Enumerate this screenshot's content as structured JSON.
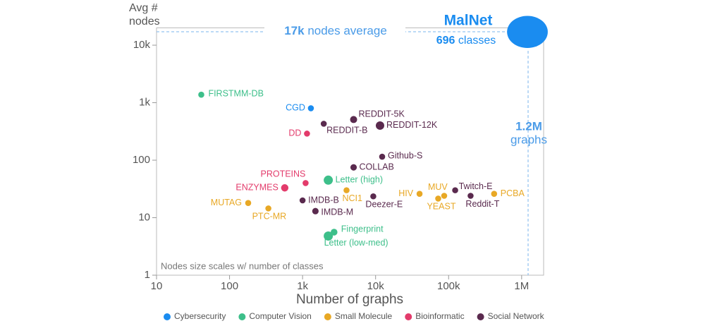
{
  "chart_data": {
    "type": "scatter",
    "ylabel": [
      "Avg #",
      "nodes"
    ],
    "xlabel": "Number of graphs",
    "xlog": true,
    "ylog": true,
    "xlim": [
      10,
      2000000
    ],
    "ylim": [
      1,
      20000
    ],
    "xticks": [
      10,
      100,
      {
        "value": 1000,
        "label": "1k"
      },
      {
        "value": 10000,
        "label": "10k"
      },
      {
        "value": 100000,
        "label": "100k"
      },
      {
        "value": 1000000,
        "label": "1M"
      }
    ],
    "yticks": [
      1,
      10,
      100,
      {
        "value": 1000,
        "label": "1k"
      },
      {
        "value": 10000,
        "label": "10k"
      }
    ],
    "note": "Nodes size scales w/ number of classes",
    "highlight": {
      "name": "MalNet",
      "classes_value": "696",
      "classes_unit": "classes",
      "avg_value": "17k",
      "avg_unit": "nodes average",
      "graphs_value": "1.2M",
      "graphs_unit": "graphs"
    },
    "series": [
      {
        "name": "Cybersecurity",
        "color": "#1a8cf0",
        "labels": [
          "CGD",
          "MalNet"
        ],
        "x": [
          1300,
          1200000
        ],
        "values": [
          800,
          17000
        ],
        "sizes": [
          2,
          696
        ]
      },
      {
        "name": "Computer Vision",
        "color": "#3dbf8a",
        "labels": [
          "FIRSTMM-DB",
          "Letter (high)",
          "Fingerprint",
          "Letter (low-med)"
        ],
        "x": [
          41,
          2250,
          2700,
          2250
        ],
        "values": [
          1377,
          45,
          5.6,
          4.8
        ],
        "sizes": [
          2,
          15,
          4,
          15
        ]
      },
      {
        "name": "Small Molecule",
        "color": "#e8a825",
        "labels": [
          "NCI1",
          "HIV",
          "MUV",
          "PCBA",
          "YEAST",
          "MUTAG",
          "PTC-MR"
        ],
        "x": [
          4000,
          40000,
          87000,
          420000,
          72000,
          180,
          340
        ],
        "values": [
          30,
          26,
          24,
          26,
          21.5,
          18,
          14.5
        ],
        "sizes": [
          2,
          2,
          2,
          2,
          2,
          2,
          2
        ]
      },
      {
        "name": "Bioinformatic",
        "color": "#e33b6b",
        "labels": [
          "DD",
          "PROTEINS",
          "ENZYMES"
        ],
        "x": [
          1150,
          1100,
          570
        ],
        "values": [
          290,
          40,
          33
        ],
        "sizes": [
          2,
          2,
          6
        ]
      },
      {
        "name": "Social Network",
        "color": "#5a2a4e",
        "labels": [
          "REDDIT-5K",
          "REDDIT-B",
          "REDDIT-12K",
          "Github-S",
          "COLLAB",
          "Twitch-E",
          "Reddit-T",
          "Deezer-E",
          "IMDB-B",
          "IMDB-M"
        ],
        "x": [
          5000,
          1950,
          11500,
          12300,
          5000,
          123000,
          200000,
          9300,
          1000,
          1500
        ],
        "values": [
          509,
          430,
          400,
          115,
          75,
          30,
          24,
          23.5,
          20,
          13
        ],
        "sizes": [
          5,
          2,
          11,
          2,
          3,
          2,
          2,
          2,
          2,
          3
        ]
      }
    ]
  }
}
